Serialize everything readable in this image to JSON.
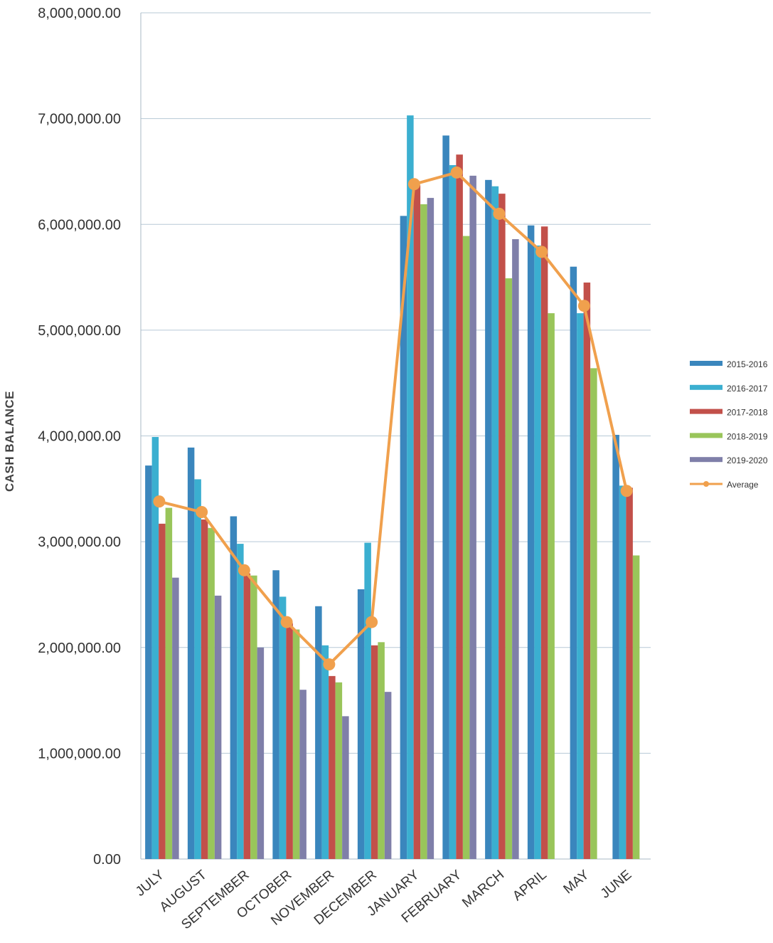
{
  "chart_data": {
    "type": "bar",
    "ylabel": "CASH BALANCE",
    "xlabel": "",
    "ylim": [
      0,
      8000000
    ],
    "y_ticks": [
      "0.00",
      "1,000,000.00",
      "2,000,000.00",
      "3,000,000.00",
      "4,000,000.00",
      "5,000,000.00",
      "6,000,000.00",
      "7,000,000.00",
      "8,000,000.00"
    ],
    "y_tick_values": [
      0,
      1000000,
      2000000,
      3000000,
      4000000,
      5000000,
      6000000,
      7000000,
      8000000
    ],
    "grid": true,
    "legend_position": "right",
    "categories": [
      "JULY",
      "AUGUST",
      "SEPTEMBER",
      "OCTOBER",
      "NOVEMBER",
      "DECEMBER",
      "JANUARY",
      "FEBRUARY",
      "MARCH",
      "APRIL",
      "MAY",
      "JUNE"
    ],
    "series": [
      {
        "name": "2015-2016",
        "color": "#3a86bd",
        "values": [
          3720000,
          3890000,
          3240000,
          2730000,
          2390000,
          2550000,
          6080000,
          6840000,
          6420000,
          5990000,
          5600000,
          4010000
        ]
      },
      {
        "name": "2016-2017",
        "color": "#3bafd0",
        "values": [
          3990000,
          3590000,
          2980000,
          2480000,
          2020000,
          2990000,
          7030000,
          6560000,
          6360000,
          5800000,
          5160000,
          3530000
        ]
      },
      {
        "name": "2017-2018",
        "color": "#c2504a",
        "values": [
          3170000,
          3210000,
          2700000,
          2230000,
          1730000,
          2020000,
          6370000,
          6660000,
          6290000,
          5980000,
          5450000,
          3510000
        ]
      },
      {
        "name": "2018-2019",
        "color": "#99c55a",
        "values": [
          3320000,
          3130000,
          2680000,
          2170000,
          1670000,
          2050000,
          6190000,
          5890000,
          5490000,
          5160000,
          4640000,
          2870000
        ]
      },
      {
        "name": "2019-2020",
        "color": "#7f7fa9",
        "values": [
          2660000,
          2490000,
          2000000,
          1600000,
          1350000,
          1580000,
          6250000,
          6460000,
          5860000,
          null,
          null,
          null
        ]
      }
    ],
    "line_series": {
      "name": "Average",
      "color": "#f0a04d",
      "values": [
        3380000,
        3280000,
        2730000,
        2240000,
        1840000,
        2240000,
        6380000,
        6490000,
        6100000,
        5740000,
        5230000,
        3480000
      ]
    }
  }
}
